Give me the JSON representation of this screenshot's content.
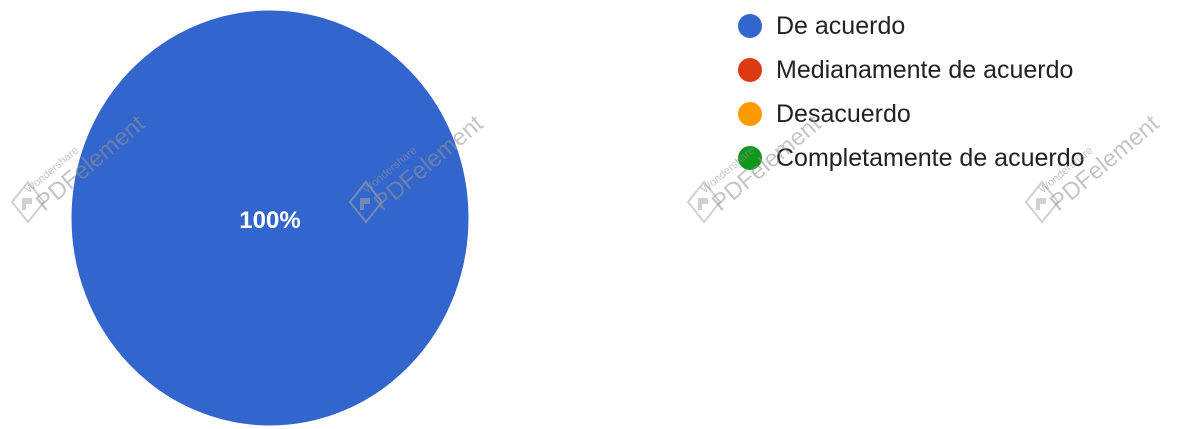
{
  "chart_data": {
    "type": "pie",
    "slices": [
      {
        "label": "De acuerdo",
        "value": 100,
        "color": "#3366cc"
      },
      {
        "label": "Medianamente de acuerdo",
        "value": 0,
        "color": "#dc3912"
      },
      {
        "label": "Desacuerdo",
        "value": 0,
        "color": "#ff9900"
      },
      {
        "label": "Completamente de acuerdo",
        "value": 0,
        "color": "#109618"
      }
    ],
    "data_labels": [
      "100%"
    ],
    "legend_position": "right"
  },
  "watermark": {
    "brand_small": "Wondershare",
    "brand_big": "PDFelement"
  }
}
